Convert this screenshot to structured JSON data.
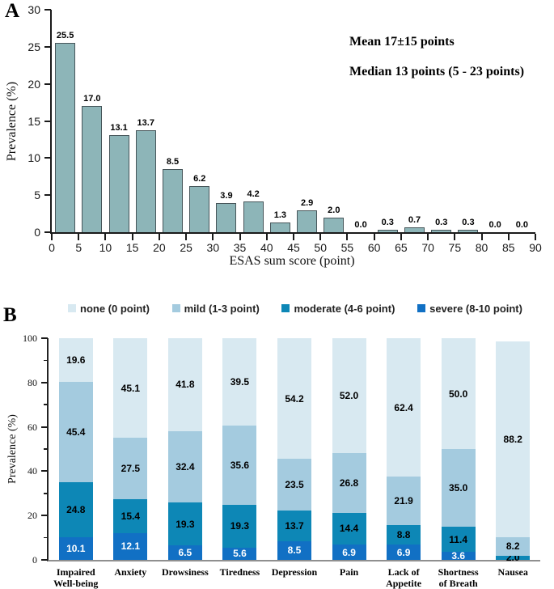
{
  "panels": {
    "a": {
      "label": "A"
    },
    "b": {
      "label": "B"
    }
  },
  "chart_data": [
    {
      "type": "bar",
      "panel": "A",
      "xlabel": "ESAS sum score (point)",
      "ylabel": "Prevalence (%)",
      "ylim": [
        0,
        30
      ],
      "yticks": [
        0,
        5,
        10,
        15,
        20,
        25,
        30
      ],
      "xticks": [
        0,
        5,
        10,
        15,
        20,
        25,
        30,
        35,
        40,
        45,
        50,
        55,
        60,
        65,
        70,
        75,
        80,
        85,
        90
      ],
      "bin_width": 5,
      "values": [
        25.5,
        17.0,
        13.1,
        13.7,
        8.5,
        6.2,
        3.9,
        4.2,
        1.3,
        2.9,
        2.0,
        0.0,
        0.3,
        0.7,
        0.3,
        0.3,
        0.0,
        0.0
      ],
      "value_labels": [
        "25.5",
        "17.0",
        "13.1",
        "13.7",
        "8.5",
        "6.2",
        "3.9",
        "4.2",
        "1.3",
        "2.9",
        "2.0",
        "0.0",
        "0.3",
        "0.7",
        "0.3",
        "0.3",
        "0.0",
        "0.0"
      ],
      "bar_color": "#8db5b8",
      "bar_border": "#47565a",
      "annotations": [
        "Mean 17±15 points",
        "Median 13 points (5 - 23 points)"
      ]
    },
    {
      "type": "stacked-bar",
      "panel": "B",
      "ylabel": "Prevalence (%)",
      "ylim": [
        0,
        100
      ],
      "yticks": [
        0,
        20,
        40,
        60,
        80,
        100
      ],
      "yticks_minor": [
        10,
        30,
        50,
        70,
        90
      ],
      "legend": [
        {
          "label": "none (0 point)",
          "color": "#d8e9f1"
        },
        {
          "label": "mild (1-3 point)",
          "color": "#a4cbdf"
        },
        {
          "label": "moderate (4-6 point)",
          "color": "#0d87b6"
        },
        {
          "label": "severe (8-10 point)",
          "color": "#1170c4"
        }
      ],
      "categories": [
        [
          "Impaired",
          "Well-being"
        ],
        [
          "Anxiety"
        ],
        [
          "Drowsiness"
        ],
        [
          "Tiredness"
        ],
        [
          "Depression"
        ],
        [
          "Pain"
        ],
        [
          "Lack of",
          "Appetite"
        ],
        [
          "Shortness",
          "of Breath"
        ],
        [
          "Nausea"
        ]
      ],
      "series": [
        {
          "name": "severe (8-10 point)",
          "color": "#1170c4",
          "label_color": "#ffffff",
          "values": [
            10.1,
            12.1,
            6.5,
            5.6,
            8.5,
            6.9,
            6.9,
            3.6,
            null
          ]
        },
        {
          "name": "moderate (4-6 point)",
          "color": "#0d87b6",
          "label_color": "#000000",
          "values": [
            24.8,
            15.4,
            19.3,
            19.3,
            13.7,
            14.4,
            8.8,
            11.4,
            2.0
          ]
        },
        {
          "name": "mild (1-3 point)",
          "color": "#a4cbdf",
          "label_color": "#000000",
          "values": [
            45.4,
            27.5,
            32.4,
            35.6,
            23.5,
            26.8,
            21.9,
            35.0,
            8.2
          ]
        },
        {
          "name": "none (0 point)",
          "color": "#d8e9f1",
          "label_color": "#000000",
          "values": [
            19.6,
            45.1,
            41.8,
            39.5,
            54.2,
            52.0,
            62.4,
            50.0,
            88.2
          ]
        }
      ]
    }
  ]
}
